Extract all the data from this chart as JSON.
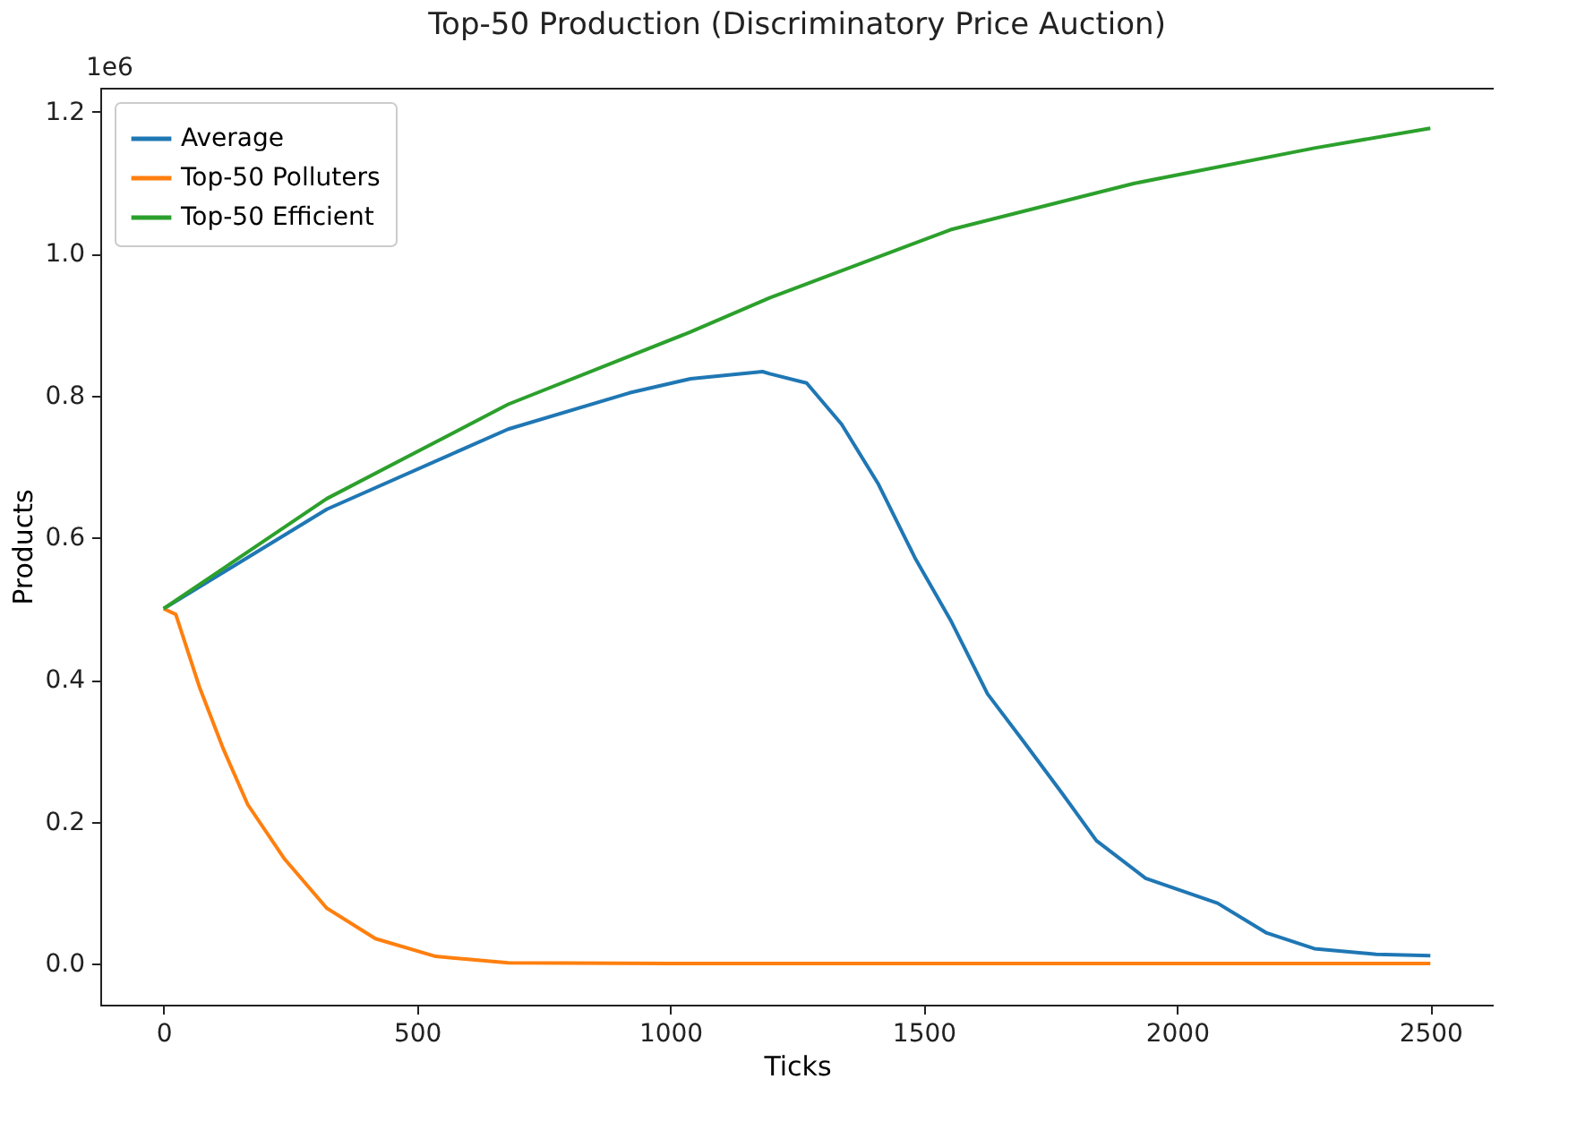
{
  "chart_data": {
    "type": "line",
    "title": "Top-50 Production (Discriminatory Price Auction)",
    "xlabel": "Ticks",
    "ylabel": "Products",
    "annotations": [
      "1e6"
    ],
    "series": [
      {
        "name": "Average",
        "color": "#1f77b4",
        "x": [
          0,
          322,
          680,
          919,
          1040,
          1182,
          1196,
          1269,
          1338,
          1411,
          1484,
          1553,
          1626,
          1699,
          1772,
          1841,
          1938,
          2080,
          2177,
          2271,
          2393,
          2500
        ],
        "values": [
          0.5,
          0.64,
          0.753,
          0.804,
          0.824,
          0.834,
          0.831,
          0.818,
          0.76,
          0.675,
          0.57,
          0.484,
          0.38,
          0.311,
          0.241,
          0.173,
          0.12,
          0.085,
          0.043,
          0.021,
          0.013,
          0.011
        ]
      },
      {
        "name": "Top-50 Polluters",
        "color": "#ff7f0e",
        "x": [
          0,
          24,
          71,
          118,
          166,
          239,
          322,
          418,
          537,
          680,
          1000,
          1500,
          2000,
          2500
        ],
        "values": [
          0.5,
          0.492,
          0.389,
          0.302,
          0.224,
          0.147,
          0.078,
          0.035,
          0.01,
          0.001,
          0,
          0,
          0,
          0
        ]
      },
      {
        "name": "Top-50 Efficient",
        "color": "#2ca02c",
        "x": [
          0,
          322,
          680,
          1040,
          1196,
          1553,
          1914,
          2271,
          2500
        ],
        "values": [
          0.5,
          0.655,
          0.788,
          0.89,
          0.938,
          1.034,
          1.099,
          1.149,
          1.177
        ]
      }
    ],
    "xlim": [
      -125,
      2625
    ],
    "ylim": [
      -0.058,
      1.234
    ],
    "xticks": [
      0,
      500,
      1000,
      1500,
      2000,
      2500
    ],
    "yticks": [
      {
        "value": 0,
        "label": "0.0"
      },
      0.2,
      0.4,
      0.6,
      0.8,
      {
        "value": 1,
        "label": "1.0"
      },
      1.2
    ],
    "legend": "top left",
    "grid": false,
    "marker": "none",
    "line_style": "solid"
  }
}
